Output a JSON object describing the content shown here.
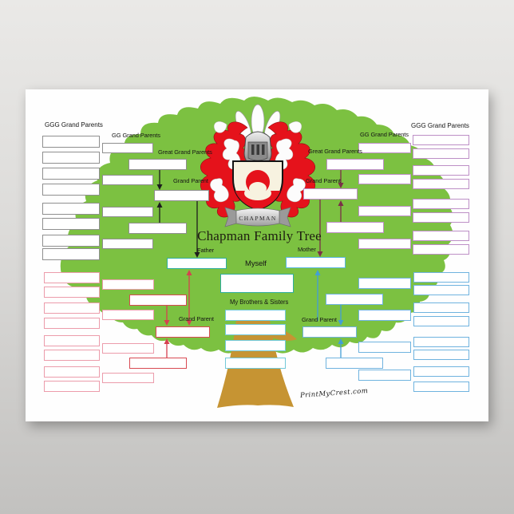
{
  "poster": {
    "title": "Chapman Family Tree",
    "banner_text": "CHAPMAN",
    "watermark": "PrintMyCrest.com",
    "labels": {
      "ggg_left": "GGG Grand Parents",
      "gg_left": "GG Grand Parents",
      "great_left": "Great Grand Parents",
      "grand_upper_left": "Grand Parent",
      "father": "Father",
      "mother": "Mother",
      "myself": "Myself",
      "siblings": "My Brothers & Sisters",
      "grand_lower_left": "Grand  Parent",
      "grand_lower_right": "Grand  Parent",
      "grand_upper_right": "Grand Parent",
      "great_right": "Great Grand Parents",
      "gg_right": "GG Grand Parents",
      "ggg_right": "GGG Grand Parents"
    },
    "colors": {
      "tree_green": "#7cc141",
      "trunk_brown": "#c69433",
      "crest_red": "#e5121b",
      "box_gray": "#8f8f8f",
      "box_pink": "#ec9cab",
      "box_mauve": "#bd8fc6",
      "box_blue": "#6fb3df",
      "box_teal": "#2fae9e",
      "box_mother_blue": "#58b7de",
      "box_cyan": "#72c9d9",
      "box_red": "#d84a52",
      "line_black": "#1d1d1d",
      "line_maroon": "#7b3048",
      "line_red": "#d64150",
      "line_blue": "#429fd6"
    },
    "slot_groups": [
      {
        "name": "ggg-grandparents-upper-left",
        "color": "box_gray",
        "boxes": [
          [
            21,
            58,
            72,
            15
          ],
          [
            21,
            78,
            72,
            15
          ],
          [
            21,
            98,
            72,
            15
          ],
          [
            21,
            118,
            72,
            15
          ],
          [
            21,
            142,
            72,
            15
          ],
          [
            21,
            161,
            72,
            15
          ],
          [
            21,
            182,
            72,
            15
          ],
          [
            21,
            199,
            72,
            15
          ]
        ]
      },
      {
        "name": "gg-grandparents-upper-left",
        "color": "box_gray",
        "boxes": [
          [
            96,
            67,
            64,
            13
          ],
          [
            96,
            107,
            64,
            13
          ],
          [
            96,
            147,
            64,
            13
          ],
          [
            96,
            187,
            64,
            13
          ]
        ]
      },
      {
        "name": "great-grandparents-upper-left",
        "color": "box_gray",
        "boxes": [
          [
            129,
            87,
            73,
            14
          ],
          [
            129,
            167,
            73,
            14
          ]
        ]
      },
      {
        "name": "grandparent-upper-left",
        "color": "box_gray",
        "boxes": [
          [
            161,
            126,
            69,
            14
          ]
        ]
      },
      {
        "name": "father",
        "color": "box_teal",
        "boxes": [
          [
            177,
            211,
            75,
            14
          ]
        ]
      },
      {
        "name": "mother",
        "color": "box_mother_blue",
        "boxes": [
          [
            326,
            210,
            75,
            14
          ]
        ]
      },
      {
        "name": "myself",
        "color": "box_teal",
        "boxes": [
          [
            244,
            231,
            92,
            24
          ]
        ]
      },
      {
        "name": "sibling",
        "color": "box_cyan",
        "boxes": [
          [
            250,
            276,
            76,
            14
          ],
          [
            250,
            294,
            76,
            14
          ],
          [
            250,
            314,
            76,
            14
          ],
          [
            250,
            336,
            76,
            14
          ]
        ]
      },
      {
        "name": "gg-grandparents-upper-right",
        "color": "box_mauve",
        "boxes": [
          [
            417,
            67,
            66,
            13
          ],
          [
            417,
            106,
            66,
            13
          ],
          [
            417,
            146,
            66,
            13
          ],
          [
            417,
            187,
            66,
            13
          ]
        ]
      },
      {
        "name": "ggg-grandparents-upper-right",
        "color": "box_mauve",
        "boxes": [
          [
            485,
            57,
            71,
            13
          ],
          [
            485,
            74,
            71,
            13
          ],
          [
            485,
            95,
            71,
            13
          ],
          [
            485,
            112,
            71,
            13
          ],
          [
            485,
            137,
            71,
            13
          ],
          [
            485,
            154,
            71,
            13
          ],
          [
            485,
            177,
            71,
            13
          ],
          [
            485,
            194,
            71,
            13
          ]
        ]
      },
      {
        "name": "great-grandparents-upper-right",
        "color": "box_mauve",
        "boxes": [
          [
            377,
            87,
            72,
            14
          ],
          [
            377,
            166,
            72,
            14
          ]
        ]
      },
      {
        "name": "grandparent-upper-right",
        "color": "box_mauve",
        "boxes": [
          [
            348,
            124,
            68,
            14
          ]
        ]
      },
      {
        "name": "ggg-grandparents-lower-left",
        "color": "box_pink",
        "boxes": [
          [
            23,
            229,
            70,
            14
          ],
          [
            23,
            247,
            70,
            14
          ],
          [
            23,
            267,
            70,
            14
          ],
          [
            23,
            286,
            70,
            14
          ],
          [
            23,
            308,
            70,
            14
          ],
          [
            23,
            326,
            70,
            14
          ],
          [
            23,
            347,
            70,
            14
          ],
          [
            23,
            365,
            70,
            14
          ]
        ]
      },
      {
        "name": "gg-grandparents-lower-left",
        "color": "box_pink",
        "boxes": [
          [
            96,
            238,
            65,
            13
          ],
          [
            96,
            276,
            65,
            13
          ],
          [
            96,
            318,
            65,
            13
          ],
          [
            96,
            355,
            65,
            13
          ]
        ]
      },
      {
        "name": "great-grandparents-lower-left",
        "color": "box_red",
        "boxes": [
          [
            130,
            257,
            72,
            14
          ],
          [
            130,
            336,
            72,
            14
          ]
        ]
      },
      {
        "name": "grandparent-lower-left",
        "color": "box_red",
        "boxes": [
          [
            163,
            297,
            68,
            14
          ]
        ]
      },
      {
        "name": "gg-grandparents-lower-right",
        "color": "box_blue",
        "boxes": [
          [
            417,
            236,
            66,
            14
          ],
          [
            417,
            276,
            66,
            14
          ],
          [
            417,
            316,
            66,
            14
          ],
          [
            417,
            351,
            66,
            14
          ]
        ]
      },
      {
        "name": "great-grandparents-lower-right",
        "color": "box_blue",
        "boxes": [
          [
            376,
            256,
            72,
            14
          ],
          [
            376,
            336,
            72,
            14
          ]
        ]
      },
      {
        "name": "grandparent-lower-right",
        "color": "box_blue",
        "boxes": [
          [
            347,
            297,
            68,
            14
          ]
        ]
      },
      {
        "name": "ggg-grandparents-lower-right",
        "color": "box_blue",
        "boxes": [
          [
            486,
            229,
            70,
            13
          ],
          [
            486,
            245,
            70,
            13
          ],
          [
            486,
            267,
            70,
            13
          ],
          [
            486,
            284,
            70,
            13
          ],
          [
            486,
            310,
            70,
            13
          ],
          [
            486,
            326,
            70,
            13
          ],
          [
            486,
            347,
            70,
            13
          ],
          [
            486,
            366,
            70,
            13
          ]
        ]
      }
    ]
  }
}
